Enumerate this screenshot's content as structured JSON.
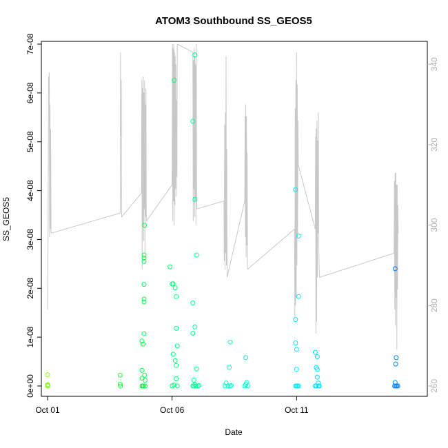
{
  "chart_data": {
    "type": "scatter",
    "title": "ATOM3 Southbound SS_GEOS5",
    "xlabel": "Date",
    "ylabel": "SS_GEOS5",
    "x_range": [
      "2017-09-30T18:00",
      "2017-10-16T06:00"
    ],
    "x_ticks": [
      {
        "date": "2017-10-01T00:00",
        "label": "Oct 01"
      },
      {
        "date": "2017-10-06T00:00",
        "label": "Oct 06"
      },
      {
        "date": "2017-10-11T00:00",
        "label": "Oct 11"
      }
    ],
    "ylim": [
      0,
      7e-08
    ],
    "y_ticks": [
      {
        "value": 0,
        "label": "0e+00"
      },
      {
        "value": 1e-08,
        "label": "1e-08"
      },
      {
        "value": 2e-08,
        "label": "2e-08"
      },
      {
        "value": 3e-08,
        "label": "3e-08"
      },
      {
        "value": 4e-08,
        "label": "4e-08"
      },
      {
        "value": 5e-08,
        "label": "5e-08"
      },
      {
        "value": 6e-08,
        "label": "6e-08"
      },
      {
        "value": 7e-08,
        "label": "7e-08"
      }
    ],
    "y2lim": [
      260,
      345
    ],
    "y2_ticks": [
      {
        "value": 260,
        "label": "260"
      },
      {
        "value": 280,
        "label": "280"
      },
      {
        "value": 300,
        "label": "300"
      },
      {
        "value": 320,
        "label": "320"
      },
      {
        "value": 340,
        "label": "340"
      }
    ],
    "grid": false,
    "point_color_scale": [
      "#7fff00",
      "#00ff40",
      "#00ffc0",
      "#00e5ff",
      "#0080ff"
    ],
    "line_color": "#c8c8c8",
    "scatter_points": [
      {
        "x": "2017-10-01T00:00",
        "y": 2.3e-09
      },
      {
        "x": "2017-10-01T00:00",
        "y": 3e-10
      },
      {
        "x": "2017-10-01T00:05",
        "y": 0
      },
      {
        "x": "2017-10-01T00:10",
        "y": 1e-10
      },
      {
        "x": "2017-10-03T22:00",
        "y": 2.2e-09
      },
      {
        "x": "2017-10-03T22:00",
        "y": 4e-10
      },
      {
        "x": "2017-10-03T22:10",
        "y": 0
      },
      {
        "x": "2017-10-04T19:00",
        "y": 3.2e-09
      },
      {
        "x": "2017-10-04T19:00",
        "y": 9.2e-09
      },
      {
        "x": "2017-10-04T19:00",
        "y": 1.6e-09
      },
      {
        "x": "2017-10-04T19:00",
        "y": 0
      },
      {
        "x": "2017-10-04T20:00",
        "y": 8.6e-09
      },
      {
        "x": "2017-10-04T21:00",
        "y": 1.72e-08
      },
      {
        "x": "2017-10-04T21:00",
        "y": 1.78e-08
      },
      {
        "x": "2017-10-04T21:00",
        "y": 2.08e-08
      },
      {
        "x": "2017-10-04T21:00",
        "y": 2.55e-08
      },
      {
        "x": "2017-10-04T21:00",
        "y": 2.62e-08
      },
      {
        "x": "2017-10-04T21:00",
        "y": 2.68e-08
      },
      {
        "x": "2017-10-04T21:00",
        "y": 1.07e-08
      },
      {
        "x": "2017-10-04T21:30",
        "y": 3.29e-08
      },
      {
        "x": "2017-10-04T21:30",
        "y": 2.2e-09
      },
      {
        "x": "2017-10-04T22:00",
        "y": 1.2e-09
      },
      {
        "x": "2017-10-04T22:00",
        "y": 0
      },
      {
        "x": "2017-10-04T19:30",
        "y": 0
      },
      {
        "x": "2017-10-04T20:30",
        "y": 0
      },
      {
        "x": "2017-10-05T22:00",
        "y": 2.44e-08
      },
      {
        "x": "2017-10-06T00:00",
        "y": 2.09e-08
      },
      {
        "x": "2017-10-06T01:00",
        "y": 2.09e-08
      },
      {
        "x": "2017-10-06T02:00",
        "y": 6.26e-08
      },
      {
        "x": "2017-10-06T03:00",
        "y": 2.01e-08
      },
      {
        "x": "2017-10-06T04:00",
        "y": 1.83e-08
      },
      {
        "x": "2017-10-06T04:00",
        "y": 1.18e-08
      },
      {
        "x": "2017-10-06T05:00",
        "y": 8.2e-09
      },
      {
        "x": "2017-10-06T01:00",
        "y": 6.5e-09
      },
      {
        "x": "2017-10-06T03:00",
        "y": 5.2e-09
      },
      {
        "x": "2017-10-06T04:00",
        "y": 4.2e-09
      },
      {
        "x": "2017-10-06T04:00",
        "y": 1.5e-09
      },
      {
        "x": "2017-10-06T00:00",
        "y": 0
      },
      {
        "x": "2017-10-06T02:00",
        "y": 2e-10
      },
      {
        "x": "2017-10-06T05:00",
        "y": 0
      },
      {
        "x": "2017-10-06T20:00",
        "y": 5.42e-08
      },
      {
        "x": "2017-10-06T20:00",
        "y": 1.7e-08
      },
      {
        "x": "2017-10-06T20:00",
        "y": 1.08e-08
      },
      {
        "x": "2017-10-06T22:00",
        "y": 6.78e-08
      },
      {
        "x": "2017-10-06T22:00",
        "y": 3.82e-08
      },
      {
        "x": "2017-10-06T22:00",
        "y": 1.21e-08
      },
      {
        "x": "2017-10-06T23:30",
        "y": 2.68e-08
      },
      {
        "x": "2017-10-06T23:30",
        "y": 3.5e-09
      },
      {
        "x": "2017-10-06T21:00",
        "y": 1.2e-09
      },
      {
        "x": "2017-10-06T20:00",
        "y": 0
      },
      {
        "x": "2017-10-06T21:00",
        "y": 0
      },
      {
        "x": "2017-10-06T22:00",
        "y": 3e-10
      },
      {
        "x": "2017-10-06T23:00",
        "y": 0
      },
      {
        "x": "2017-10-07T01:00",
        "y": 0
      },
      {
        "x": "2017-10-07T02:00",
        "y": 1e-10
      },
      {
        "x": "2017-10-08T03:00",
        "y": 0
      },
      {
        "x": "2017-10-08T04:00",
        "y": 6e-10
      },
      {
        "x": "2017-10-08T06:00",
        "y": 0
      },
      {
        "x": "2017-10-08T07:00",
        "y": 3.8e-09
      },
      {
        "x": "2017-10-08T08:00",
        "y": 9e-09
      },
      {
        "x": "2017-10-08T08:00",
        "y": 0
      },
      {
        "x": "2017-10-08T09:00",
        "y": 1e-10
      },
      {
        "x": "2017-10-08T23:00",
        "y": 5.8e-09
      },
      {
        "x": "2017-10-08T22:00",
        "y": 0
      },
      {
        "x": "2017-10-08T23:00",
        "y": 3e-10
      },
      {
        "x": "2017-10-09T00:00",
        "y": 7e-10
      },
      {
        "x": "2017-10-09T01:00",
        "y": 0
      },
      {
        "x": "2017-10-10T23:00",
        "y": 4.02e-08
      },
      {
        "x": "2017-10-10T23:00",
        "y": 1.36e-08
      },
      {
        "x": "2017-10-10T23:00",
        "y": 8.8e-09
      },
      {
        "x": "2017-10-11T00:00",
        "y": 7.5e-09
      },
      {
        "x": "2017-10-11T02:00",
        "y": 3.07e-08
      },
      {
        "x": "2017-10-11T02:00",
        "y": 1.83e-08
      },
      {
        "x": "2017-10-11T00:00",
        "y": 3.4e-09
      },
      {
        "x": "2017-10-10T23:00",
        "y": 0
      },
      {
        "x": "2017-10-11T00:00",
        "y": 0
      },
      {
        "x": "2017-10-11T01:00",
        "y": 0
      },
      {
        "x": "2017-10-11T02:00",
        "y": 0
      },
      {
        "x": "2017-10-11T18:00",
        "y": 6.9e-09
      },
      {
        "x": "2017-10-11T20:00",
        "y": 6e-09
      },
      {
        "x": "2017-10-11T19:00",
        "y": 3.8e-09
      },
      {
        "x": "2017-10-11T20:00",
        "y": 3.4e-09
      },
      {
        "x": "2017-10-11T20:00",
        "y": 1.8e-09
      },
      {
        "x": "2017-10-11T21:00",
        "y": 6e-10
      },
      {
        "x": "2017-10-11T18:00",
        "y": 0
      },
      {
        "x": "2017-10-11T19:00",
        "y": 0
      },
      {
        "x": "2017-10-11T21:00",
        "y": 0
      },
      {
        "x": "2017-10-11T22:00",
        "y": 0
      },
      {
        "x": "2017-10-14T23:00",
        "y": 2.4e-08
      },
      {
        "x": "2017-10-15T00:00",
        "y": 5.8e-09
      },
      {
        "x": "2017-10-14T23:30",
        "y": 4.5e-09
      },
      {
        "x": "2017-10-14T23:00",
        "y": 7e-10
      },
      {
        "x": "2017-10-14T22:30",
        "y": 0
      },
      {
        "x": "2017-10-14T23:30",
        "y": 0
      },
      {
        "x": "2017-10-15T00:30",
        "y": 0
      },
      {
        "x": "2017-10-15T01:30",
        "y": 0
      }
    ],
    "line_series": [
      [
        [
          "2017-10-01T00:00",
          279
        ],
        [
          "2017-10-01T00:30",
          300
        ],
        [
          "2017-10-01T01:00",
          337
        ],
        [
          "2017-10-01T01:20",
          333
        ],
        [
          "2017-10-01T01:40",
          338
        ],
        [
          "2017-10-01T02:00",
          297
        ],
        [
          "2017-10-01T02:20",
          330
        ],
        [
          "2017-10-01T02:40",
          299
        ],
        [
          "2017-10-01T03:00",
          324
        ],
        [
          "2017-10-01T03:20",
          298
        ]
      ],
      [
        [
          "2017-10-01T03:20",
          298
        ],
        [
          "2017-10-03T22:00",
          303
        ]
      ],
      [
        [
          "2017-10-03T22:00",
          303
        ],
        [
          "2017-10-03T22:20",
          343
        ],
        [
          "2017-10-03T22:40",
          322
        ],
        [
          "2017-10-03T23:00",
          336
        ],
        [
          "2017-10-03T23:20",
          302
        ]
      ],
      [
        [
          "2017-10-03T23:20",
          302
        ],
        [
          "2017-10-04T18:30",
          308
        ]
      ],
      [
        [
          "2017-10-04T18:30",
          308
        ],
        [
          "2017-10-04T18:50",
          336
        ],
        [
          "2017-10-04T19:10",
          289
        ],
        [
          "2017-10-04T19:30",
          334
        ],
        [
          "2017-10-04T19:50",
          300
        ],
        [
          "2017-10-04T20:10",
          337
        ],
        [
          "2017-10-04T20:30",
          296
        ],
        [
          "2017-10-04T20:50",
          333
        ],
        [
          "2017-10-04T21:10",
          304
        ],
        [
          "2017-10-04T21:30",
          336
        ],
        [
          "2017-10-04T21:50",
          293
        ],
        [
          "2017-10-04T22:10",
          330
        ],
        [
          "2017-10-04T22:30",
          302
        ],
        [
          "2017-10-04T22:50",
          334
        ],
        [
          "2017-10-04T23:10",
          301
        ]
      ],
      [
        [
          "2017-10-04T23:10",
          301
        ],
        [
          "2017-10-06T00:00",
          310
        ]
      ],
      [
        [
          "2017-10-06T00:00",
          310
        ],
        [
          "2017-10-06T00:20",
          345
        ],
        [
          "2017-10-06T00:40",
          301
        ],
        [
          "2017-10-06T01:00",
          344
        ],
        [
          "2017-10-06T01:20",
          306
        ],
        [
          "2017-10-06T01:40",
          345
        ],
        [
          "2017-10-06T02:00",
          300
        ],
        [
          "2017-10-06T02:20",
          343
        ],
        [
          "2017-10-06T02:40",
          305
        ],
        [
          "2017-10-06T03:00",
          342
        ],
        [
          "2017-10-06T03:20",
          309
        ],
        [
          "2017-10-06T03:40",
          340
        ],
        [
          "2017-10-06T04:00",
          307
        ],
        [
          "2017-10-06T04:20",
          331
        ],
        [
          "2017-10-06T04:40",
          312
        ],
        [
          "2017-10-06T05:00",
          345
        ]
      ],
      [
        [
          "2017-10-06T05:00",
          345
        ],
        [
          "2017-10-06T20:00",
          343
        ]
      ],
      [
        [
          "2017-10-06T20:00",
          343
        ],
        [
          "2017-10-06T20:20",
          301
        ],
        [
          "2017-10-06T20:40",
          341
        ],
        [
          "2017-10-06T21:00",
          309
        ],
        [
          "2017-10-06T21:20",
          344
        ],
        [
          "2017-10-06T21:40",
          302
        ],
        [
          "2017-10-06T22:00",
          342
        ],
        [
          "2017-10-06T22:20",
          306
        ],
        [
          "2017-10-06T22:40",
          340
        ],
        [
          "2017-10-06T23:00",
          300
        ],
        [
          "2017-10-06T23:20",
          345
        ],
        [
          "2017-10-06T23:40",
          304
        ]
      ],
      [
        [
          "2017-10-06T23:40",
          304
        ],
        [
          "2017-10-08T02:00",
          306
        ]
      ],
      [
        [
          "2017-10-08T02:00",
          306
        ],
        [
          "2017-10-08T02:20",
          291
        ],
        [
          "2017-10-08T02:40",
          325
        ],
        [
          "2017-10-08T03:00",
          289
        ],
        [
          "2017-10-08T03:20",
          328
        ],
        [
          "2017-10-08T03:40",
          293
        ],
        [
          "2017-10-08T04:00",
          342
        ],
        [
          "2017-10-08T04:20",
          290
        ],
        [
          "2017-10-08T04:40",
          319
        ],
        [
          "2017-10-08T05:00",
          287
        ]
      ],
      [
        [
          "2017-10-08T05:00",
          287
        ],
        [
          "2017-10-08T22:00",
          306
        ]
      ],
      [
        [
          "2017-10-08T22:00",
          306
        ],
        [
          "2017-10-08T22:20",
          327
        ],
        [
          "2017-10-08T22:40",
          297
        ],
        [
          "2017-10-08T23:00",
          330
        ],
        [
          "2017-10-08T23:20",
          292
        ],
        [
          "2017-10-08T23:40",
          327
        ],
        [
          "2017-10-09T00:00",
          295
        ],
        [
          "2017-10-09T00:20",
          318
        ],
        [
          "2017-10-09T00:40",
          289
        ]
      ],
      [
        [
          "2017-10-09T00:40",
          289
        ],
        [
          "2017-10-10T22:00",
          299
        ]
      ],
      [
        [
          "2017-10-10T22:00",
          299
        ],
        [
          "2017-10-10T22:20",
          277
        ],
        [
          "2017-10-10T22:40",
          329
        ],
        [
          "2017-10-10T23:00",
          280
        ],
        [
          "2017-10-10T23:20",
          336
        ],
        [
          "2017-10-10T23:40",
          282
        ],
        [
          "2017-10-11T00:00",
          343
        ],
        [
          "2017-10-11T00:20",
          290
        ],
        [
          "2017-10-11T00:40",
          335
        ],
        [
          "2017-10-11T01:00",
          297
        ],
        [
          "2017-10-11T01:20",
          326
        ],
        [
          "2017-10-11T01:40",
          315
        ]
      ],
      [
        [
          "2017-10-11T01:40",
          315
        ],
        [
          "2017-10-11T18:00",
          299
        ]
      ],
      [
        [
          "2017-10-11T18:00",
          299
        ],
        [
          "2017-10-11T18:20",
          322
        ],
        [
          "2017-10-11T18:40",
          273
        ],
        [
          "2017-10-11T19:00",
          324
        ],
        [
          "2017-10-11T19:20",
          276
        ],
        [
          "2017-10-11T19:40",
          326
        ],
        [
          "2017-10-11T20:00",
          287
        ],
        [
          "2017-10-11T20:20",
          321
        ],
        [
          "2017-10-11T20:40",
          298
        ],
        [
          "2017-10-11T21:00",
          328
        ],
        [
          "2017-10-11T21:20",
          295
        ]
      ],
      [
        [
          "2017-10-11T21:20",
          295
        ],
        [
          "2017-10-11T22:00",
          287
        ]
      ],
      [
        [
          "2017-10-11T22:00",
          287
        ],
        [
          "2017-10-14T22:00",
          293
        ]
      ],
      [
        [
          "2017-10-14T22:00",
          293
        ],
        [
          "2017-10-14T22:20",
          311
        ],
        [
          "2017-10-14T22:40",
          279
        ],
        [
          "2017-10-14T23:00",
          313
        ],
        [
          "2017-10-14T23:20",
          275
        ],
        [
          "2017-10-14T23:40",
          313
        ],
        [
          "2017-10-15T00:00",
          282
        ],
        [
          "2017-10-15T00:20",
          310
        ],
        [
          "2017-10-15T00:40",
          269
        ],
        [
          "2017-10-15T01:00",
          310
        ],
        [
          "2017-10-15T01:20",
          284
        ],
        [
          "2017-10-15T01:40",
          305
        ],
        [
          "2017-10-15T02:00",
          298
        ]
      ]
    ]
  }
}
